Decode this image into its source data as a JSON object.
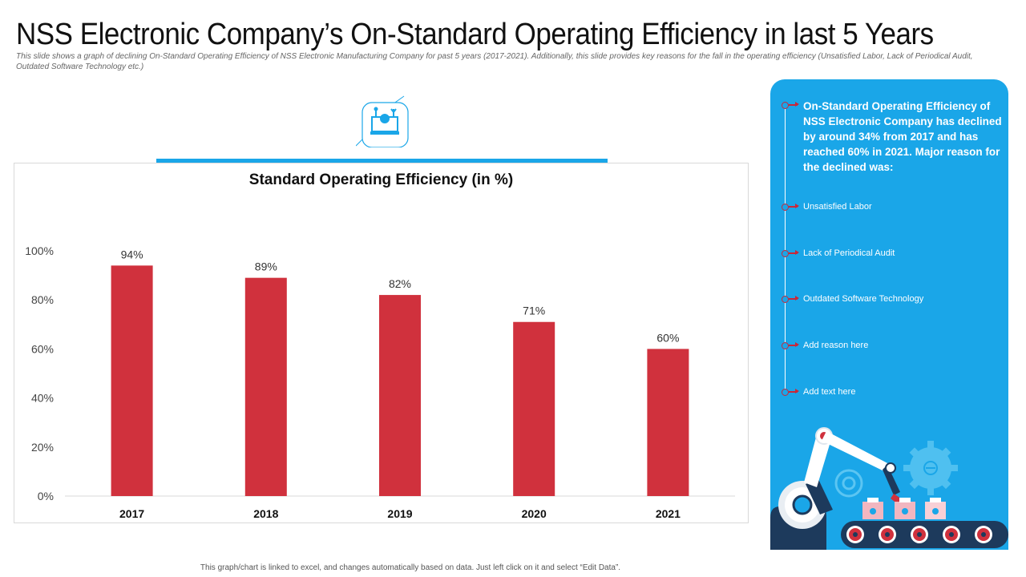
{
  "header": {
    "title": "NSS Electronic Company’s On-Standard Operating Efficiency in last 5 Years",
    "subtitle": "This slide shows a graph of declining On-Standard Operating Efficiency of NSS Electronic Manufacturing Company for past 5 years (2017-2021). Additionally, this slide provides key reasons for the fall in the operating efficiency (Unsatisfied Labor, Lack of Periodical Audit, Outdated Software Technology etc.)"
  },
  "icon": {
    "name": "factory-machine-icon"
  },
  "chart_data": {
    "type": "bar",
    "title": "Standard Operating Efficiency (in %)",
    "categories": [
      "2017",
      "2018",
      "2019",
      "2020",
      "2021"
    ],
    "values": [
      94,
      89,
      82,
      71,
      60
    ],
    "data_labels": [
      "94%",
      "89%",
      "82%",
      "71%",
      "60%"
    ],
    "ylim": [
      0,
      100
    ],
    "yticks": [
      0,
      20,
      40,
      60,
      80,
      100
    ],
    "ytick_labels": [
      "0%",
      "20%",
      "40%",
      "60%",
      "80%",
      "100%"
    ],
    "xlabel": "",
    "ylabel": "",
    "grid": false,
    "bar_color": "#d0313d"
  },
  "panel": {
    "lead_text": "On-Standard Operating Efficiency of NSS Electronic Company has declined by around 34% from 2017 and has reached 60% in 2021. Major reason for the declined was:",
    "items": [
      {
        "label": "Unsatisfied Labor"
      },
      {
        "label": "Lack of Periodical Audit"
      },
      {
        "label": "Outdated Software Technology"
      },
      {
        "label": "Add reason here"
      },
      {
        "label": "Add text here"
      }
    ],
    "background_color": "#1aa6e8"
  },
  "footer": {
    "note": "This graph/chart is linked to excel, and changes automatically  based on data. Just left click on it and select “Edit Data”."
  },
  "colors": {
    "accent": "#1aa6e8",
    "bar": "#d0313d"
  }
}
